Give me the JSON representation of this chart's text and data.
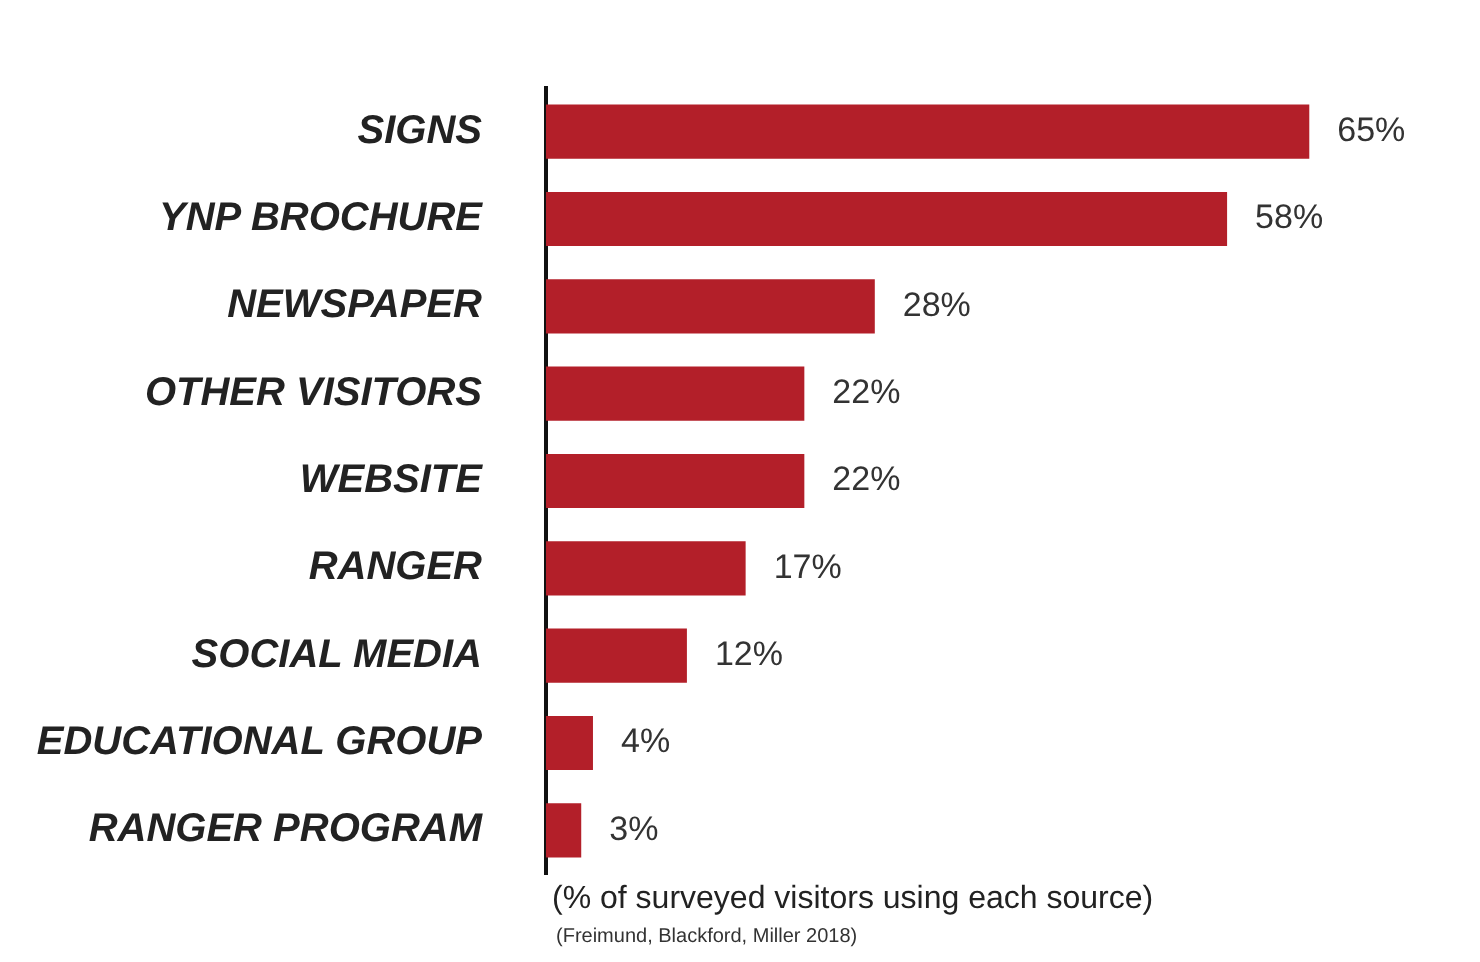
{
  "chart_data": {
    "type": "bar",
    "orientation": "horizontal",
    "categories": [
      "SIGNS",
      "YNP BROCHURE",
      "NEWSPAPER",
      "OTHER VISITORS",
      "WEBSITE",
      "RANGER",
      "SOCIAL MEDIA",
      "EDUCATIONAL GROUP",
      "RANGER PROGRAM"
    ],
    "values": [
      65,
      58,
      28,
      22,
      22,
      17,
      12,
      4,
      3
    ],
    "value_labels": [
      "65%",
      "58%",
      "28%",
      "22%",
      "22%",
      "17%",
      "12%",
      "4%",
      "3%"
    ],
    "color": "#b31f29",
    "xlabel": "(% of surveyed visitors using each source)",
    "annotations": [
      "(Freimund, Blackford, Miller 2018)"
    ],
    "legend": false
  }
}
